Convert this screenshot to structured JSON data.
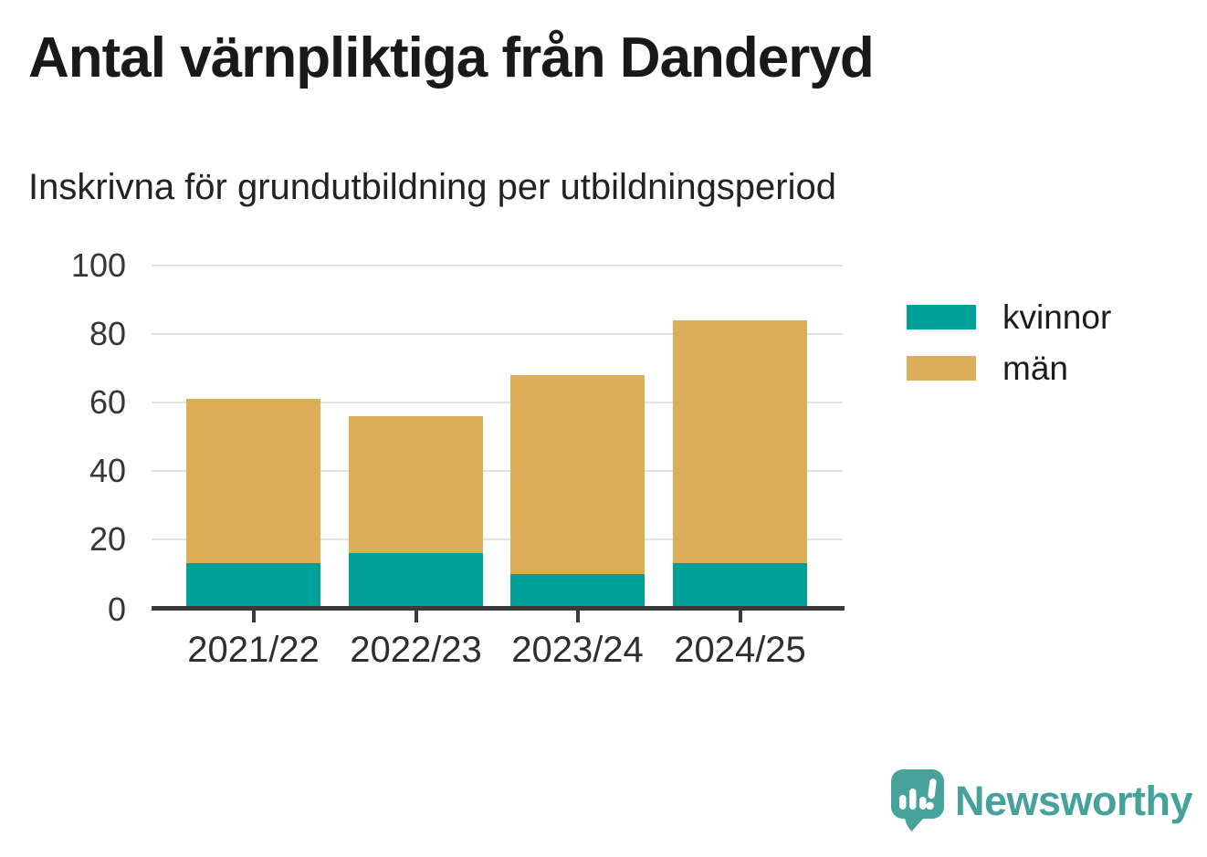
{
  "title": "Antal värnpliktiga från Danderyd",
  "subtitle": "Inskrivna för grundutbildning per utbildningsperiod",
  "chart_data": {
    "type": "bar",
    "stacked": true,
    "title": "Antal värnpliktiga från Danderyd",
    "subtitle": "Inskrivna för grundutbildning per utbildningsperiod",
    "categories": [
      "2021/22",
      "2022/23",
      "2023/24",
      "2024/25"
    ],
    "series": [
      {
        "name": "kvinnor",
        "color": "#00a096",
        "values": [
          13,
          16,
          10,
          13
        ]
      },
      {
        "name": "män",
        "color": "#dcae5a",
        "values": [
          48,
          40,
          58,
          71
        ]
      }
    ],
    "stack_totals": [
      61,
      56,
      68,
      84
    ],
    "xlabel": "",
    "ylabel": "",
    "ylim": [
      0,
      100
    ],
    "yticks": [
      0,
      20,
      40,
      60,
      80,
      100
    ],
    "grid": true,
    "legend_position": "right"
  },
  "colors": {
    "kvinnor": "#00a096",
    "man": "#dcae5a",
    "gridline": "#e2e2e2",
    "axis": "#3a3a3a",
    "title_text": "#191919",
    "brand_teal": "#45a29b"
  },
  "branding": {
    "logo_text": "Newsworthy",
    "logo_icon": "speech-bubble-bar-chart-icon"
  }
}
